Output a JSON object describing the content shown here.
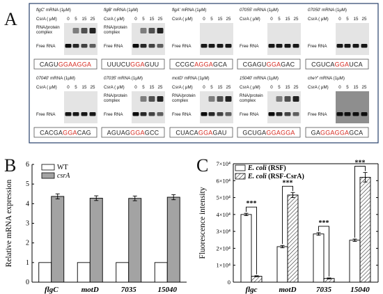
{
  "panel_letters": {
    "a": "A",
    "b": "B",
    "c": "C"
  },
  "panel_a": {
    "concentration_label": "CsrA ( μM)",
    "concentrations": [
      "0",
      "5",
      "15",
      "25"
    ],
    "complex_label_line1": "RNA/protein",
    "complex_label_line2": "complex",
    "free_label": "Free RNA",
    "gels": [
      {
        "gene": "flgC",
        "sequence": [
          [
            "CAGU",
            "#222222"
          ],
          [
            "GGAAGGA",
            "#d62a20"
          ]
        ]
      },
      {
        "gene": "flgB",
        "sequence": [
          [
            "UUUCU",
            "#222222"
          ],
          [
            "GGA",
            "#d62a20"
          ],
          [
            "GUU",
            "#222222"
          ]
        ]
      },
      {
        "gene": "flgA",
        "sequence": [
          [
            "CCGC",
            "#222222"
          ],
          [
            "AGGA",
            "#d62a20"
          ],
          [
            "GCA",
            "#222222"
          ]
        ]
      },
      {
        "gene": "07055",
        "sequence": [
          [
            "CGAGU",
            "#222222"
          ],
          [
            "GGA",
            "#d62a20"
          ],
          [
            "GAC",
            "#222222"
          ]
        ]
      },
      {
        "gene": "07050",
        "sequence": [
          [
            "CGUCA",
            "#222222"
          ],
          [
            "GGA",
            "#d62a20"
          ],
          [
            "UCA",
            "#222222"
          ]
        ]
      },
      {
        "gene": "07040",
        "sequence": [
          [
            "CACGA",
            "#222222"
          ],
          [
            "GGA",
            "#d62a20"
          ],
          [
            "CAG",
            "#222222"
          ]
        ]
      },
      {
        "gene": "07035",
        "sequence": [
          [
            "AGUAG",
            "#222222"
          ],
          [
            "GGA",
            "#d62a20"
          ],
          [
            "GCC",
            "#222222"
          ]
        ]
      },
      {
        "gene": "motD",
        "sequence": [
          [
            "CUACA",
            "#222222"
          ],
          [
            "GGA",
            "#d62a20"
          ],
          [
            "GAU",
            "#222222"
          ]
        ]
      },
      {
        "gene": "15040",
        "sequence": [
          [
            "GCUGA",
            "#222222"
          ],
          [
            "GGAGGA",
            "#d62a20"
          ]
        ]
      },
      {
        "gene": "cheY",
        "sequence": [
          [
            "GA",
            "#222222"
          ],
          [
            "GGAGGA",
            "#d62a20"
          ],
          [
            "GCA",
            "#222222"
          ]
        ]
      }
    ],
    "gene_suffix": "' mRNA (1μM)",
    "colors": {
      "border": "#27406b",
      "motif": "#d62a20"
    }
  },
  "chart_data": [
    {
      "type": "bar",
      "panel": "B",
      "categories": [
        "flgC",
        "motD",
        "7035",
        "15040"
      ],
      "series": [
        {
          "name": "WT",
          "values": [
            1,
            1,
            1,
            1
          ],
          "errors": [
            0,
            0,
            0,
            0
          ],
          "fill": "#ffffff"
        },
        {
          "name": "csrA",
          "values": [
            4.37,
            4.28,
            4.27,
            4.33
          ],
          "errors": [
            0.13,
            0.12,
            0.12,
            0.13
          ],
          "fill": "#a3a3a3"
        }
      ],
      "xlabel": "",
      "ylabel": "Relative mRNA expression",
      "ylim": [
        0,
        6
      ],
      "yticks": [
        0,
        1,
        2,
        3,
        4,
        5,
        6
      ],
      "legend": "top-left",
      "grid": false
    },
    {
      "type": "bar",
      "panel": "C",
      "categories": [
        "flgc",
        "motD",
        "7035",
        "15040"
      ],
      "series": [
        {
          "name": "E. coli (RSF)",
          "values": [
            40000,
            21000,
            28500,
            24800
          ],
          "errors": [
            700,
            700,
            800,
            700
          ],
          "fill": "#ffffff"
        },
        {
          "name": "E. coli (RSF-CsrA)",
          "values": [
            3500,
            51500,
            2200,
            62000
          ],
          "errors": [
            300,
            1500,
            300,
            2800
          ],
          "fill": "hatched"
        }
      ],
      "xlabel": "",
      "ylabel": "Fluorescence intensity",
      "ylim": [
        0,
        70000
      ],
      "ytick_labels": [
        "0",
        "1×10⁴",
        "2×10⁴",
        "3×10⁴",
        "4×10⁴",
        "5×10⁴",
        "6×10⁴",
        "7×10⁴"
      ],
      "significance": [
        "***",
        "***",
        "***",
        "***"
      ],
      "legend": "top-left",
      "grid": false
    }
  ]
}
